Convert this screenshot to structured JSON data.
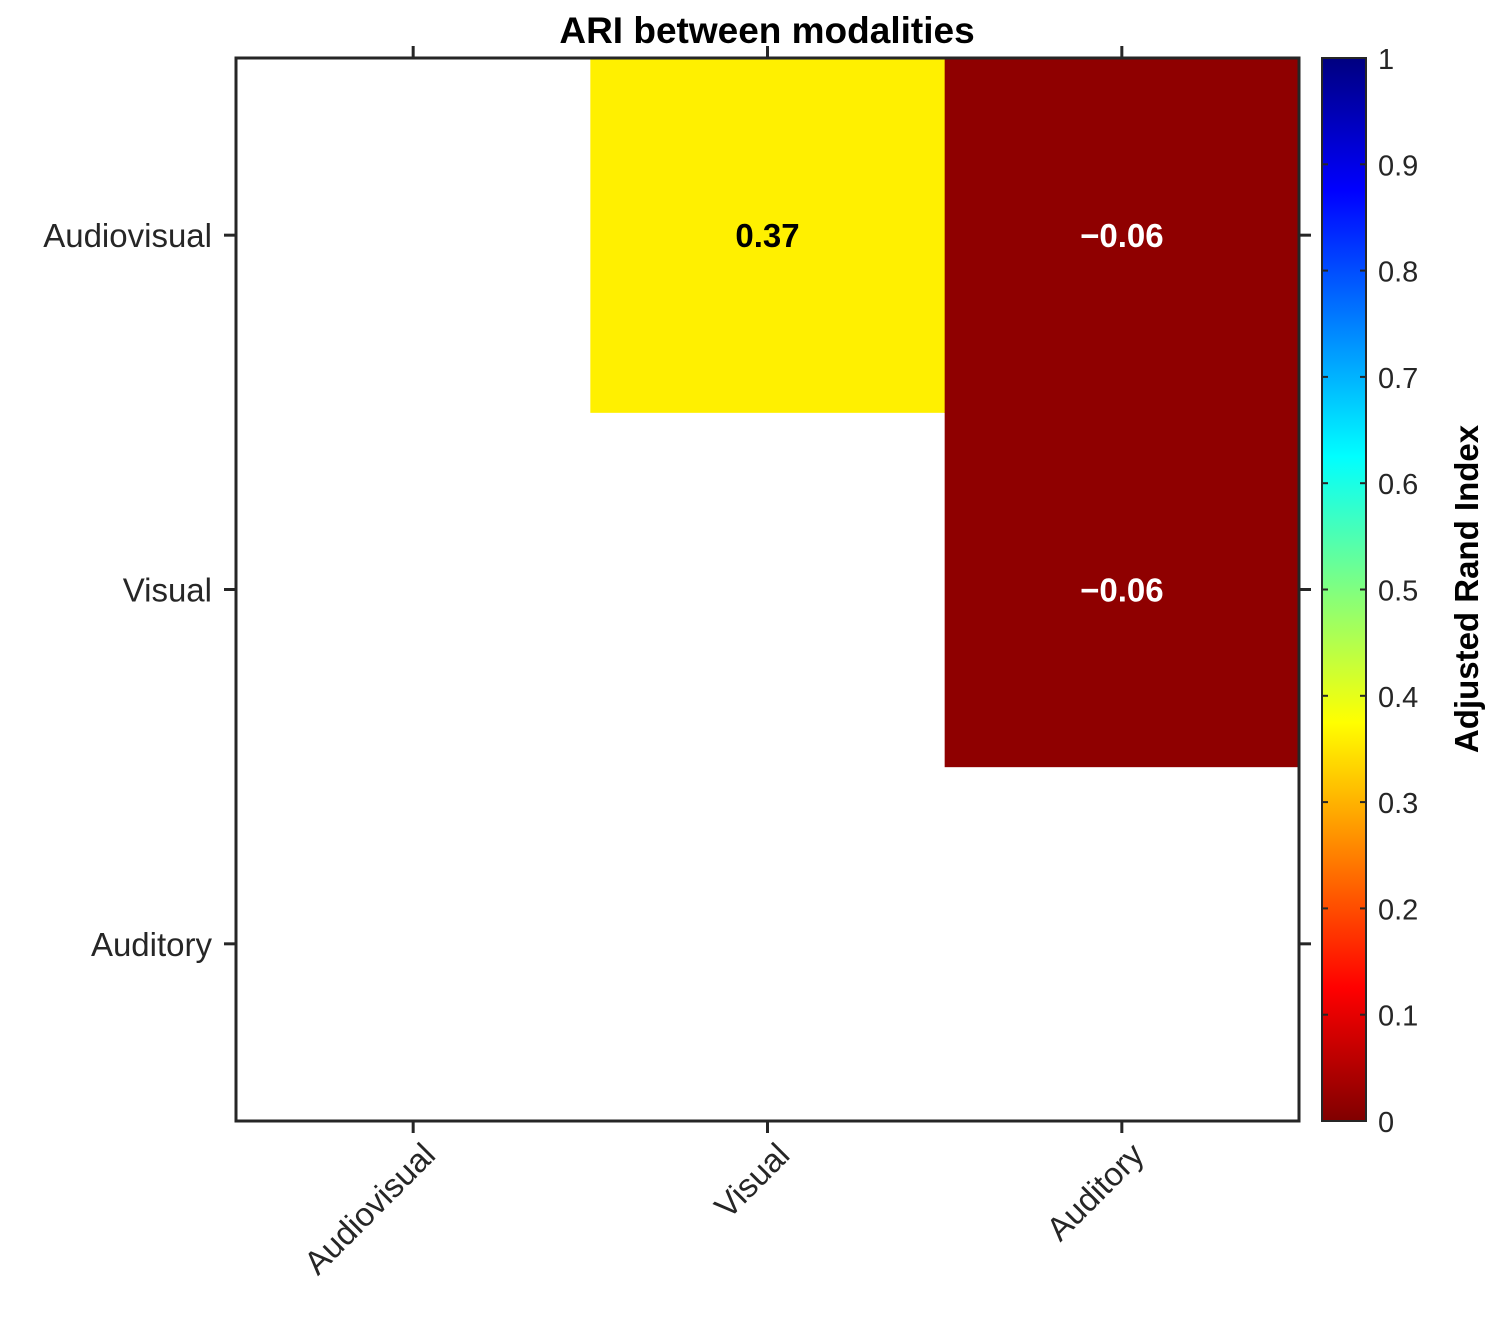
{
  "chart_data": {
    "type": "heatmap",
    "title": "ARI between modalities",
    "x_categories": [
      "Audiovisual",
      "Visual",
      "Auditory"
    ],
    "y_categories": [
      "Audiovisual",
      "Visual",
      "Auditory"
    ],
    "cells": [
      {
        "row": 0,
        "col": 1,
        "value": 0.37,
        "label": "0.37",
        "color": "#FFF000",
        "text_color": "#000000"
      },
      {
        "row": 0,
        "col": 2,
        "value": -0.06,
        "label": "−0.06",
        "color": "#8F0000",
        "text_color": "#FFFFFF"
      },
      {
        "row": 1,
        "col": 2,
        "value": -0.06,
        "label": "−0.06",
        "color": "#8F0000",
        "text_color": "#FFFFFF"
      }
    ],
    "empty_cell_color": "#FFFFFF",
    "colorbar": {
      "label": "Adjusted Rand Index",
      "range": [
        0,
        1
      ],
      "ticks": [
        "0",
        "0.1",
        "0.2",
        "0.3",
        "0.4",
        "0.5",
        "0.6",
        "0.7",
        "0.8",
        "0.9",
        "1"
      ],
      "colormap": "jet",
      "colormap_stops": [
        "#800000",
        "#FF0000",
        "#FF8000",
        "#FFFF00",
        "#80FF80",
        "#00FFFF",
        "#0080FF",
        "#0000FF",
        "#000080"
      ]
    },
    "x_tick_rotation_deg": 45,
    "grid": false
  }
}
